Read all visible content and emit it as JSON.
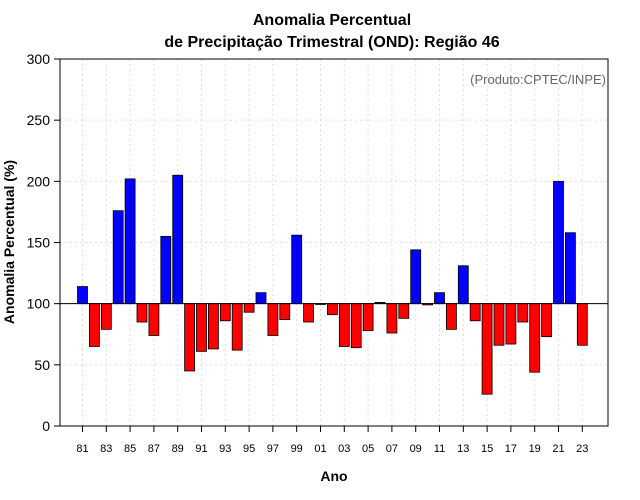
{
  "chart_data": {
    "type": "bar",
    "title_line1": "Anomalia Percentual",
    "title_line2": "de Precipitação Trimestral (OND): Região 46",
    "xlabel": "Ano",
    "ylabel": "Anomalia Percentual (%)",
    "annotation": "(Produto:CPTEC/INPE)",
    "ylim": [
      0,
      300
    ],
    "yticks": [
      0,
      50,
      100,
      150,
      200,
      250,
      300
    ],
    "baseline": 100,
    "colors": {
      "above": "#0000ff",
      "below": "#ff0000"
    },
    "categories": [
      "81",
      "82",
      "83",
      "84",
      "85",
      "86",
      "87",
      "88",
      "89",
      "90",
      "91",
      "92",
      "93",
      "94",
      "95",
      "96",
      "97",
      "98",
      "99",
      "00",
      "01",
      "02",
      "03",
      "04",
      "05",
      "06",
      "07",
      "08",
      "09",
      "10",
      "11",
      "12",
      "13",
      "14",
      "15",
      "16",
      "17",
      "18",
      "19",
      "20",
      "21",
      "22",
      "23"
    ],
    "xtick_labels": [
      "81",
      "83",
      "85",
      "87",
      "89",
      "91",
      "93",
      "95",
      "97",
      "99",
      "01",
      "03",
      "05",
      "07",
      "09",
      "11",
      "13",
      "15",
      "17",
      "19",
      "21",
      "23"
    ],
    "values": [
      114,
      65,
      79,
      176,
      202,
      85,
      74,
      155,
      205,
      45,
      61,
      63,
      86,
      62,
      93,
      109,
      74,
      87,
      156,
      85,
      100,
      91,
      65,
      64,
      78,
      101,
      76,
      88,
      144,
      99,
      109,
      79,
      131,
      86,
      26,
      66,
      67,
      85,
      44,
      73,
      200,
      158,
      66
    ]
  }
}
